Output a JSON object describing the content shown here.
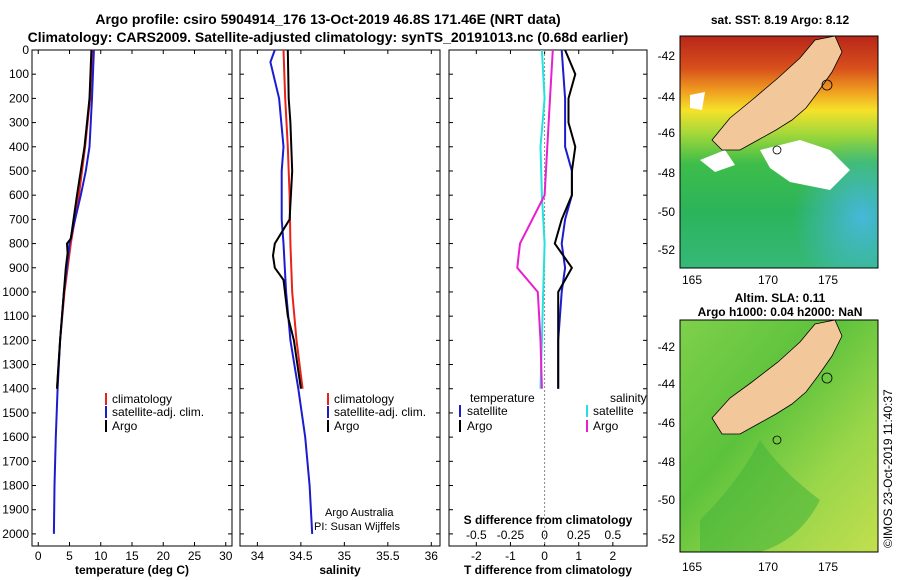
{
  "title": {
    "line1": "Argo profile: csiro 5904914_176 13-Oct-2019 46.8S 171.46E (NRT data)",
    "line2": "Climatology: CARS2009. Satellite-adjusted climatology: synTS_20191013.nc (0.68d earlier)"
  },
  "colors": {
    "climatology": "#e8231b",
    "satellite": "#1c1ccf",
    "argo": "#000000",
    "sat_salinity": "#26e0e0",
    "argo_salinity": "#e81fd0",
    "land": "#f2c79a"
  },
  "chart_data": [
    {
      "type": "line",
      "name": "temperature-panel",
      "xlabel": "temperature (deg C)",
      "xlim": [
        -1,
        31
      ],
      "ylim": [
        2050,
        0
      ],
      "xticks": [
        0,
        5,
        10,
        15,
        20,
        25,
        30
      ],
      "yticks": [
        0,
        100,
        200,
        300,
        400,
        500,
        600,
        700,
        800,
        900,
        1000,
        1100,
        1200,
        1300,
        1400,
        1500,
        1600,
        1700,
        1800,
        1900,
        2000
      ],
      "legend": [
        "climatology",
        "satellite-adj. clim.",
        "Argo"
      ],
      "series": [
        {
          "name": "climatology",
          "depth": [
            0,
            200,
            400,
            600,
            800,
            1000,
            1200,
            1400
          ],
          "values": [
            8.7,
            8.3,
            7.5,
            6.5,
            5.2,
            4.2,
            3.5,
            3.0
          ]
        },
        {
          "name": "satellite-adj. clim.",
          "depth": [
            0,
            200,
            400,
            500,
            600,
            700,
            800,
            1000,
            1200,
            1400,
            1600,
            1800,
            2000
          ],
          "values": [
            8.9,
            8.6,
            8.2,
            7.6,
            6.8,
            5.9,
            5.0,
            4.1,
            3.5,
            3.1,
            2.8,
            2.6,
            2.5
          ]
        },
        {
          "name": "Argo",
          "depth": [
            0,
            200,
            400,
            600,
            780,
            800,
            840,
            900,
            1000,
            1200,
            1400
          ],
          "values": [
            8.5,
            8.2,
            7.4,
            6.2,
            5.2,
            4.6,
            4.7,
            4.4,
            4.1,
            3.5,
            3.0
          ]
        }
      ]
    },
    {
      "type": "line",
      "name": "salinity-panel",
      "xlabel": "salinity",
      "xlim": [
        33.8,
        36.1
      ],
      "ylim": [
        2050,
        0
      ],
      "xticks": [
        34,
        34.5,
        35,
        35.5,
        36
      ],
      "legend": [
        "climatology",
        "satellite-adj. clim.",
        "Argo"
      ],
      "annotations": [
        "Argo Australia",
        "PI: Susan Wijffels"
      ],
      "series": [
        {
          "name": "climatology",
          "depth": [
            0,
            200,
            400,
            600,
            800,
            1000,
            1200,
            1400
          ],
          "values": [
            34.3,
            34.32,
            34.35,
            34.37,
            34.38,
            34.4,
            34.45,
            34.52
          ]
        },
        {
          "name": "satellite-adj. clim.",
          "depth": [
            0,
            50,
            200,
            400,
            500,
            700,
            800,
            1000,
            1200,
            1400,
            1600,
            1800,
            2000
          ],
          "values": [
            34.2,
            34.15,
            34.25,
            34.3,
            34.28,
            34.28,
            34.3,
            34.33,
            34.38,
            34.47,
            34.55,
            34.6,
            34.63
          ]
        },
        {
          "name": "Argo",
          "depth": [
            0,
            200,
            300,
            500,
            700,
            800,
            850,
            900,
            950,
            1100,
            1200,
            1400
          ],
          "values": [
            34.35,
            34.36,
            34.38,
            34.4,
            34.37,
            34.2,
            34.18,
            34.2,
            34.3,
            34.35,
            34.42,
            34.5
          ]
        }
      ]
    },
    {
      "type": "line",
      "name": "difference-panel",
      "xlabel": "T difference from climatology",
      "xlabel2": "S difference from climatology",
      "xlim": [
        -2.8,
        3.0
      ],
      "ylim": [
        2050,
        0
      ],
      "xticks": [
        -2,
        -1,
        0,
        1,
        2
      ],
      "s_ticks": [
        "-0.5",
        "-0.25",
        "0",
        "0.25",
        "0.5"
      ],
      "legend_left_title": "temperature",
      "legend_right_title": "salinity",
      "legend": [
        "satellite",
        "Argo",
        "satellite",
        "Argo"
      ],
      "series": [
        {
          "name": "T satellite",
          "depth": [
            0,
            200,
            400,
            500,
            600,
            700,
            800,
            900,
            1000,
            1200,
            1400
          ],
          "values": [
            0.5,
            0.6,
            0.6,
            0.8,
            0.8,
            0.6,
            0.5,
            0.6,
            0.5,
            0.4,
            0.4
          ]
        },
        {
          "name": "T Argo",
          "depth": [
            0,
            100,
            200,
            300,
            400,
            500,
            600,
            700,
            800,
            900,
            950,
            1000,
            1200,
            1400
          ],
          "values": [
            0.6,
            0.9,
            0.7,
            0.7,
            0.9,
            0.8,
            0.8,
            0.5,
            0.3,
            0.8,
            0.6,
            0.4,
            0.4,
            0.4
          ]
        },
        {
          "name": "S satellite",
          "depth": [
            0,
            200,
            400,
            600,
            800,
            1000,
            1200,
            1400
          ],
          "values": [
            -0.02,
            0.0,
            -0.03,
            -0.02,
            0.0,
            -0.01,
            -0.02,
            -0.03
          ]
        },
        {
          "name": "S Argo",
          "depth": [
            0,
            100,
            200,
            400,
            600,
            800,
            850,
            900,
            1000,
            1200,
            1400
          ],
          "values": [
            0.06,
            0.05,
            0.04,
            0.02,
            0.0,
            -0.18,
            -0.19,
            -0.2,
            -0.05,
            -0.03,
            -0.02
          ]
        }
      ]
    }
  ],
  "maps": {
    "sst": {
      "title": "sat. SST: 8.19 Argo: 8.12",
      "lat_ticks": [
        "-42",
        "-44",
        "-46",
        "-48",
        "-50",
        "-52"
      ],
      "lon_ticks": [
        "165",
        "170",
        "175"
      ]
    },
    "sla": {
      "title1": "Altim. SLA: 0.11",
      "title2": "Argo h1000: 0.04 h2000: NaN",
      "lat_ticks": [
        "-42",
        "-44",
        "-46",
        "-48",
        "-50",
        "-52"
      ],
      "lon_ticks": [
        "165",
        "170",
        "175"
      ]
    }
  },
  "credit": "©IMOS 23-Oct-2019 11:40:37"
}
